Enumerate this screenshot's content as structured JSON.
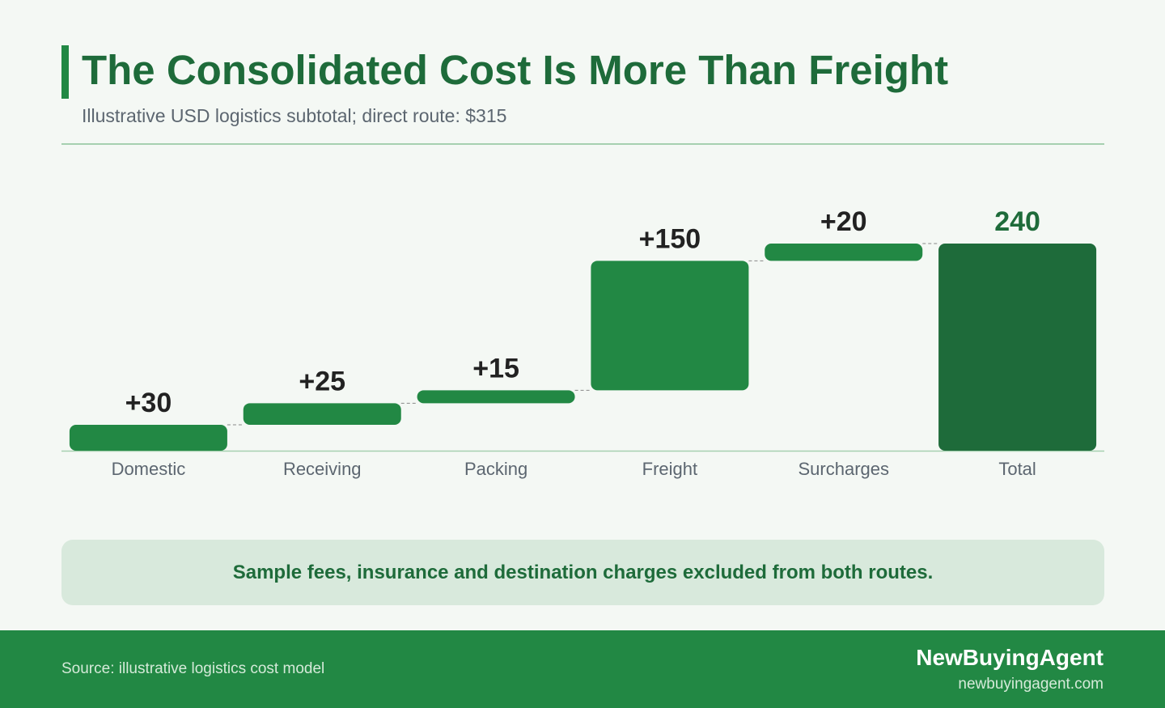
{
  "header": {
    "title": "The Consolidated Cost Is More Than Freight",
    "subtitle": "Illustrative USD logistics subtotal; direct route: $315"
  },
  "chart_data": {
    "type": "waterfall",
    "categories": [
      "Domestic",
      "Receiving",
      "Packing",
      "Freight",
      "Surcharges",
      "Total"
    ],
    "values": [
      30,
      25,
      15,
      150,
      20,
      240
    ],
    "value_labels": [
      "+30",
      "+25",
      "+15",
      "+150",
      "+20",
      "240"
    ],
    "total_index": 5,
    "ylim": [
      0,
      300
    ],
    "grid": false,
    "colors": {
      "step": "#228844",
      "total": "#1e6b3a",
      "step_label": "#222222",
      "total_label": "#1e6b3a",
      "connector": "#888888",
      "baseline": "#a6d0b0"
    }
  },
  "note": "Sample fees, insurance and destination charges excluded from both routes.",
  "footer": {
    "source": "Source: illustrative logistics cost model",
    "brand": "NewBuyingAgent",
    "url": "newbuyingagent.com"
  }
}
